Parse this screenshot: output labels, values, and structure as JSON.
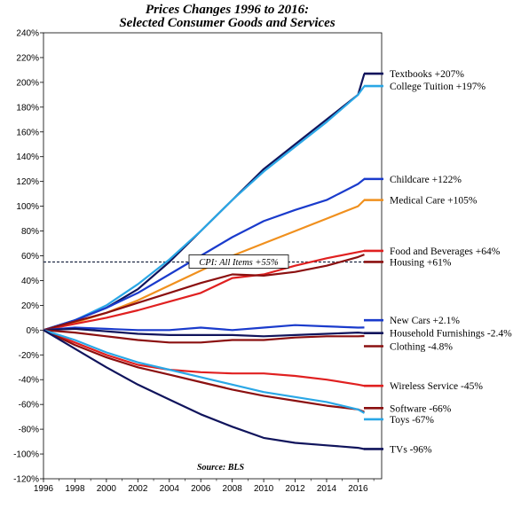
{
  "chart_data": {
    "type": "line",
    "title_line1": "Prices Changes 1996 to 2016:",
    "title_line2": "Selected Consumer Goods and Services",
    "source": "Source: BLS",
    "xlim": [
      1996,
      2017.5
    ],
    "ylim": [
      -120,
      240
    ],
    "x_ticks": [
      1996,
      1998,
      2000,
      2002,
      2004,
      2006,
      2008,
      2010,
      2012,
      2014,
      2016
    ],
    "y_ticks": [
      -120,
      -100,
      -80,
      -60,
      -40,
      -20,
      0,
      20,
      40,
      60,
      80,
      100,
      120,
      140,
      160,
      180,
      200,
      220,
      240
    ],
    "grid": false,
    "legend_position": "right",
    "reference_line": {
      "label": "CPI: All Items +55%",
      "y": 55,
      "color": "#1f2a44"
    },
    "series": [
      {
        "name": "Textbooks +207%",
        "color": "#10145c",
        "x": [
          1996,
          1998,
          2000,
          2002,
          2004,
          2006,
          2008,
          2010,
          2012,
          2014,
          2016,
          2016.4
        ],
        "values": [
          0,
          8,
          18,
          33,
          55,
          80,
          105,
          130,
          150,
          170,
          190,
          207
        ]
      },
      {
        "name": "College Tuition +197%",
        "color": "#2aa7e6",
        "x": [
          1996,
          1998,
          2000,
          2002,
          2004,
          2006,
          2008,
          2010,
          2012,
          2014,
          2016,
          2016.4
        ],
        "values": [
          0,
          8,
          20,
          37,
          57,
          80,
          105,
          128,
          148,
          168,
          190,
          197
        ]
      },
      {
        "name": "Childcare +122%",
        "color": "#1a3bcc",
        "x": [
          1996,
          1998,
          2000,
          2002,
          2004,
          2006,
          2008,
          2010,
          2012,
          2014,
          2016,
          2016.4
        ],
        "values": [
          0,
          8,
          18,
          30,
          45,
          60,
          75,
          88,
          97,
          105,
          118,
          122
        ]
      },
      {
        "name": "Medical Care +105%",
        "color": "#f0901e",
        "x": [
          1996,
          1998,
          2000,
          2002,
          2004,
          2006,
          2008,
          2010,
          2012,
          2014,
          2016,
          2016.4
        ],
        "values": [
          0,
          6,
          14,
          24,
          36,
          48,
          60,
          70,
          80,
          90,
          100,
          105
        ]
      },
      {
        "name": "Food and Beverages +64%",
        "color": "#e02020",
        "x": [
          1996,
          1998,
          2000,
          2002,
          2004,
          2006,
          2008,
          2010,
          2012,
          2014,
          2016,
          2016.4
        ],
        "values": [
          0,
          5,
          10,
          16,
          23,
          30,
          42,
          45,
          52,
          58,
          63,
          64
        ]
      },
      {
        "name": "Housing +61%",
        "color": "#8b1010",
        "x": [
          1996,
          1998,
          2000,
          2002,
          2004,
          2006,
          2008,
          2010,
          2012,
          2014,
          2016,
          2016.4
        ],
        "values": [
          0,
          7,
          14,
          22,
          30,
          38,
          45,
          44,
          47,
          52,
          59,
          61
        ]
      },
      {
        "name": "New Cars +2.1%",
        "color": "#1a3bcc",
        "x": [
          1996,
          1998,
          2000,
          2002,
          2004,
          2006,
          2008,
          2010,
          2012,
          2014,
          2016,
          2016.4
        ],
        "values": [
          0,
          2,
          1,
          0,
          0,
          2,
          0,
          2,
          4,
          3,
          2,
          2.1
        ]
      },
      {
        "name": "Household Furnishings -2.4%",
        "color": "#10145c",
        "x": [
          1996,
          1998,
          2000,
          2002,
          2004,
          2006,
          2008,
          2010,
          2012,
          2014,
          2016,
          2016.4
        ],
        "values": [
          0,
          1,
          -1,
          -3,
          -4,
          -4,
          -4,
          -5,
          -4,
          -3,
          -2,
          -2.4
        ]
      },
      {
        "name": "Clothing -4.8%",
        "color": "#8b1010",
        "x": [
          1996,
          1998,
          2000,
          2002,
          2004,
          2006,
          2008,
          2010,
          2012,
          2014,
          2016,
          2016.4
        ],
        "values": [
          0,
          -2,
          -5,
          -8,
          -10,
          -10,
          -8,
          -8,
          -6,
          -5,
          -5,
          -4.8
        ]
      },
      {
        "name": "Wireless Service -45%",
        "color": "#e02020",
        "x": [
          1996,
          1998,
          2000,
          2002,
          2004,
          2006,
          2008,
          2010,
          2012,
          2014,
          2016,
          2016.4
        ],
        "values": [
          0,
          -10,
          -20,
          -28,
          -32,
          -34,
          -35,
          -35,
          -37,
          -40,
          -44,
          -45
        ]
      },
      {
        "name": "Software -66%",
        "color": "#8b1010",
        "x": [
          1996,
          1998,
          2000,
          2002,
          2004,
          2006,
          2008,
          2010,
          2012,
          2014,
          2016,
          2016.4
        ],
        "values": [
          0,
          -12,
          -22,
          -30,
          -36,
          -42,
          -48,
          -53,
          -57,
          -61,
          -64,
          -66
        ]
      },
      {
        "name": "Toys -67%",
        "color": "#2aa7e6",
        "x": [
          1996,
          1998,
          2000,
          2002,
          2004,
          2006,
          2008,
          2010,
          2012,
          2014,
          2016,
          2016.4
        ],
        "values": [
          0,
          -8,
          -18,
          -26,
          -32,
          -38,
          -44,
          -50,
          -54,
          -58,
          -64,
          -67
        ]
      },
      {
        "name": "TVs -96%",
        "color": "#10145c",
        "x": [
          1996,
          1998,
          2000,
          2002,
          2004,
          2006,
          2008,
          2010,
          2012,
          2014,
          2016,
          2016.4
        ],
        "values": [
          0,
          -15,
          -30,
          -44,
          -56,
          -68,
          -78,
          -87,
          -91,
          -93,
          -95,
          -96
        ]
      }
    ],
    "legend_order": [
      "Textbooks +207%",
      "College Tuition +197%",
      "Childcare +122%",
      "Medical Care +105%",
      "Food and Beverages +64%",
      "Housing +61%",
      "New Cars +2.1%",
      "Household Furnishings -2.4%",
      "Clothing -4.8%",
      "Wireless Service -45%",
      "Software -66%",
      "Toys -67%",
      "TVs -96%"
    ],
    "legend_anchor_values": {
      "Textbooks +207%": 207,
      "College Tuition +197%": 197,
      "Childcare +122%": 122,
      "Medical Care +105%": 105,
      "Food and Beverages +64%": 64,
      "Housing +61%": 55,
      "New Cars +2.1%": 8,
      "Household Furnishings -2.4%": -2.4,
      "Clothing -4.8%": -13,
      "Wireless Service -45%": -45,
      "Software -66%": -63,
      "Toys -67%": -72,
      "TVs -96%": -96
    }
  }
}
